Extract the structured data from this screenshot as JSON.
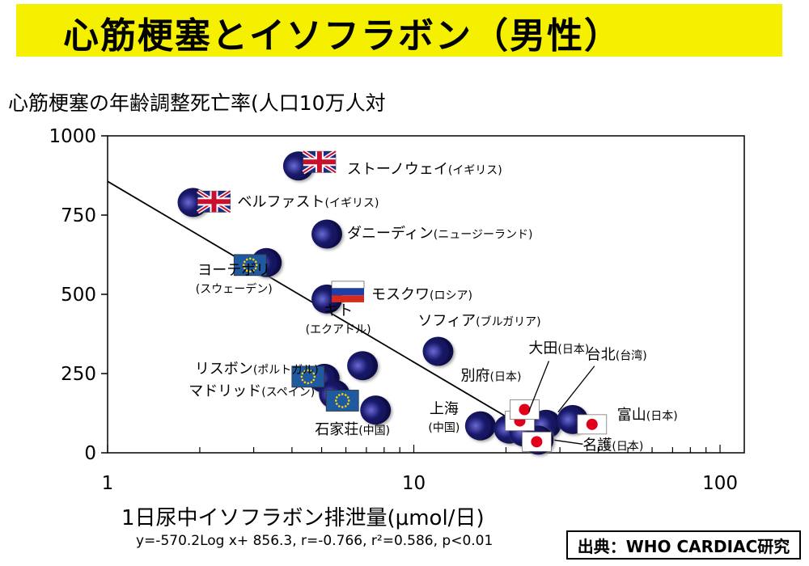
{
  "title": "心筋梗塞とイソフラボン（男性）",
  "source": "出典：WHO CARDIAC研究",
  "colors": {
    "title_bg": "#f5f000",
    "marker": "#1b1b6e",
    "marker_highlight": "#6a6ad6",
    "line": "#000000"
  },
  "chart_data": {
    "type": "scatter",
    "ylabel": "心筋梗塞の年齢調整死亡率(人口10万人対",
    "xlabel": "1日尿中イソフラボン排泄量(μmol/日)",
    "formula": "y=-570.2Log x+ 856.3, r=-0.766, r²=0.586, p<0.01",
    "xscale": "log",
    "xlim": [
      1,
      120
    ],
    "ylim": [
      0,
      1000
    ],
    "xticks": [
      1,
      10,
      100
    ],
    "yticks": [
      0,
      250,
      500,
      750,
      1000
    ],
    "grid": false,
    "regression": {
      "slope": -570.2,
      "intercept": 856.3,
      "x_range": [
        1,
        23
      ]
    },
    "points": [
      {
        "name": "ストーノウェイ",
        "sub": "(イギリス)",
        "x": 4.2,
        "y": 905,
        "flag": "uk"
      },
      {
        "name": "ベルファスト",
        "sub": "(イギリス)",
        "x": 1.9,
        "y": 790,
        "flag": "uk"
      },
      {
        "name": "ダニーディン",
        "sub": "(ニュージーランド)",
        "x": 5.2,
        "y": 690,
        "flag": ""
      },
      {
        "name": "ヨーテボリ",
        "sub": "(スウェーデン)",
        "x": 3.3,
        "y": 600,
        "flag": "eu"
      },
      {
        "name": "モスクワ",
        "sub": "(ロシア)",
        "x": 5.2,
        "y": 485,
        "flag": "ru"
      },
      {
        "name": "ソフィア",
        "sub": "(ブルガリア)",
        "x": 12.0,
        "y": 320,
        "flag": ""
      },
      {
        "name": "キト",
        "sub": "(エクアドル)",
        "x": 6.8,
        "y": 275,
        "flag": ""
      },
      {
        "name": "リスボン",
        "sub": "(ポルトガル)",
        "x": 5.1,
        "y": 235,
        "flag": "eu"
      },
      {
        "name": "マドリッド",
        "sub": "(スペイン)",
        "x": 5.5,
        "y": 185,
        "flag": "eu"
      },
      {
        "name": "石家荘",
        "sub": "(中国)",
        "x": 7.5,
        "y": 135,
        "flag": ""
      },
      {
        "name": "上海",
        "sub": "(中国)",
        "x": 16.5,
        "y": 85,
        "flag": ""
      },
      {
        "name": "別府",
        "sub": "(日本)",
        "x": 20.5,
        "y": 75,
        "flag": "jp"
      },
      {
        "name": "大田",
        "sub": "(日本)",
        "x": 23.0,
        "y": 65,
        "flag": "jp"
      },
      {
        "name": "台北",
        "sub": "(台湾)",
        "x": 27.0,
        "y": 90,
        "flag": ""
      },
      {
        "name": "富山",
        "sub": "(日本)",
        "x": 33.0,
        "y": 105,
        "flag": "jp"
      },
      {
        "name": "名護",
        "sub": "(日本)",
        "x": 25.5,
        "y": 40,
        "flag": "jp"
      }
    ]
  }
}
